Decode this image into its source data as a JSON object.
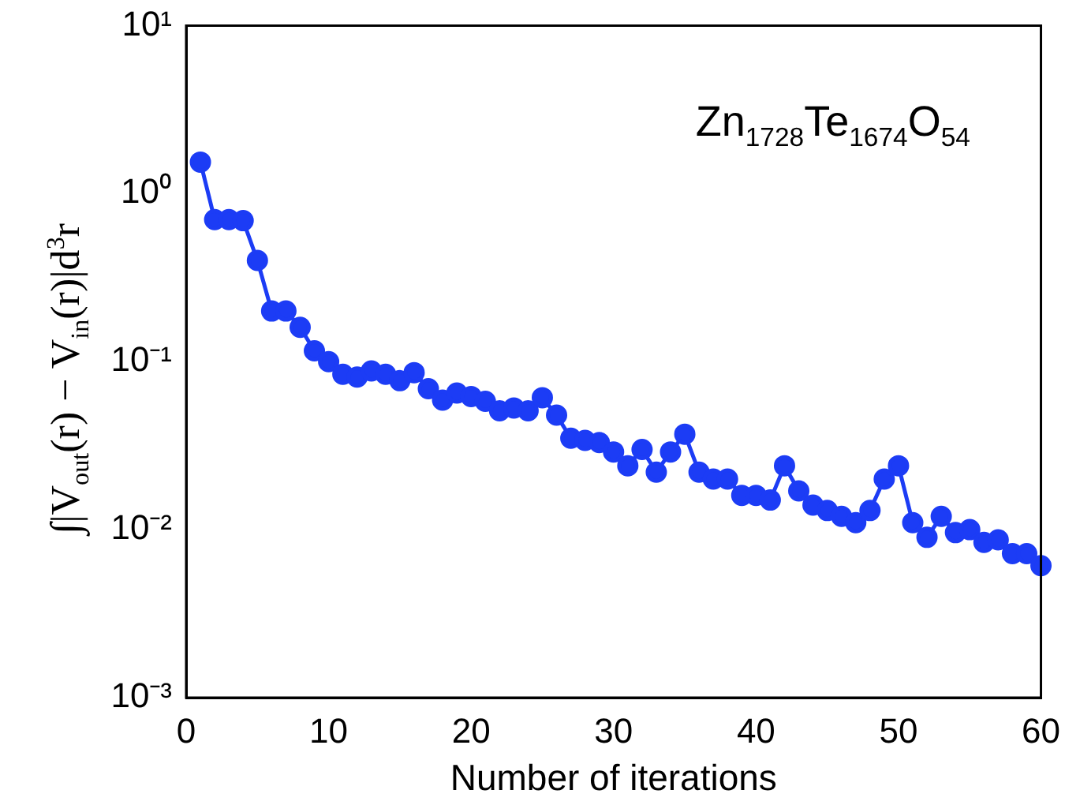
{
  "chart_data": {
    "type": "line",
    "xlabel": "Number of iterations",
    "ylabel": "∫|V$_{out}$(r) − V$_{in}$(r)|d$^{3}$r",
    "annotations": [
      "Zn$_{1728}$Te$_{1674}$O$_{54}$"
    ],
    "x": [
      1,
      2,
      3,
      4,
      5,
      6,
      7,
      8,
      9,
      10,
      11,
      12,
      13,
      14,
      15,
      16,
      17,
      18,
      19,
      20,
      21,
      22,
      23,
      24,
      25,
      26,
      27,
      28,
      29,
      30,
      31,
      32,
      33,
      34,
      35,
      36,
      37,
      38,
      39,
      40,
      41,
      42,
      43,
      44,
      45,
      46,
      47,
      48,
      49,
      50,
      51,
      52,
      53,
      54,
      55,
      56,
      57,
      58,
      59,
      60
    ],
    "series": [
      {
        "color": "#1c3cf5",
        "values": [
          1.54,
          0.7,
          0.7,
          0.69,
          0.4,
          0.2,
          0.2,
          0.16,
          0.116,
          0.1,
          0.084,
          0.081,
          0.088,
          0.084,
          0.077,
          0.086,
          0.069,
          0.059,
          0.065,
          0.062,
          0.058,
          0.051,
          0.053,
          0.051,
          0.061,
          0.048,
          0.035,
          0.034,
          0.033,
          0.029,
          0.024,
          0.03,
          0.022,
          0.029,
          0.037,
          0.022,
          0.02,
          0.02,
          0.016,
          0.016,
          0.015,
          0.024,
          0.017,
          0.014,
          0.013,
          0.012,
          0.011,
          0.013,
          0.02,
          0.024,
          0.011,
          0.009,
          0.012,
          0.0096,
          0.01,
          0.0084,
          0.0087,
          0.0072,
          0.0072,
          0.0061
        ]
      }
    ],
    "log": "y",
    "xlim": [
      0,
      60
    ],
    "xticks": [
      0,
      10,
      20,
      30,
      40,
      50,
      60
    ],
    "ylim": [
      0.001,
      10
    ],
    "yticks": [
      {
        "value": 0.001,
        "label": "10⁻³"
      },
      {
        "value": 0.01,
        "label": "10⁻²"
      },
      {
        "value": 0.1,
        "label": "10⁻¹"
      },
      {
        "value": 1,
        "label": "10⁰"
      },
      {
        "value": 10,
        "label": "10¹"
      }
    ],
    "grid": false,
    "legend": false,
    "marker": "circle",
    "line_style": "solid"
  }
}
